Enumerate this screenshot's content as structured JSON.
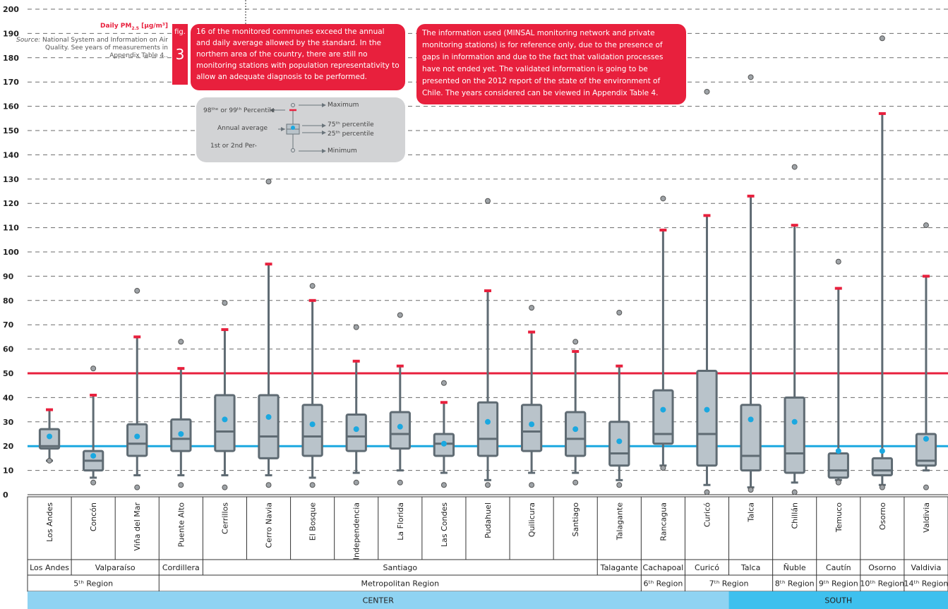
{
  "note_title": "Daily PM",
  "note_title_sub": "2.5",
  "note_title_unit": "[µg/m³]",
  "note_source_label": "Source:",
  "note_source_text": "National System and Information on Air Quality. See years of measurements in Appendix Table 4..",
  "fig_label": "fig.",
  "fig_number": "3",
  "callout_left": "16 of the monitored communes exceed the annual and daily average allowed by the standard. In the northern area of the country, there are still no monitoring stations with population representativity to allow an adequate diagnosis to be performed.",
  "callout_right": "The information used (MINSAL monitoring network and private monitoring stations) is for reference only, due to the presence of gaps in information and due to the fact that validation processes have not ended yet. The validated information is going to be presented on the 2012 report of the state of the environment of Chile. The years considered can be viewed in Appendix Table 4.",
  "legend": {
    "p98": "98ᵗʰᵉ or 99ᵗʰ Percentile",
    "max": "Maximum",
    "avg": "Annual average",
    "p75": "75ᵗʰ percentile",
    "p25": "25ᵗʰ percentile",
    "p1": "1st  or  2nd  Per-",
    "min": "Minimum"
  },
  "colors": {
    "red": "#e8203d",
    "blue": "#1ba8e0",
    "box": "#b9c3ca",
    "box_edge": "#5f6b73",
    "center_band": "#8fd3f2",
    "south_band": "#3ec0ee"
  },
  "chart_data": {
    "type": "box",
    "ylim": [
      0,
      200
    ],
    "yticks": [
      0,
      10,
      20,
      30,
      40,
      50,
      60,
      70,
      80,
      90,
      100,
      110,
      120,
      130,
      140,
      150,
      160,
      170,
      180,
      190,
      200
    ],
    "reference_lines": [
      {
        "value": 50,
        "color": "#e8203d"
      },
      {
        "value": 20,
        "color": "#1ba8e0"
      }
    ],
    "categories": [
      "Los Andes",
      "Concón",
      "Viña del Mar",
      "Puente Alto",
      "Cerrillos",
      "Cerro Navia",
      "El Bosque",
      "Independencia",
      "La Florida",
      "Las Condes",
      "Pudahuel",
      "Quilicura",
      "Santiago",
      "Talagante",
      "Rancagua",
      "Curicó",
      "Talca",
      "Chillán",
      "Temuco",
      "Osorno",
      "Valdivia"
    ],
    "series": [
      {
        "min": 14,
        "q1": 19,
        "median": 20,
        "q3": 27,
        "p98": 35,
        "max": 35,
        "mean": 24,
        "outlier_high": null,
        "outlier_low": 14
      },
      {
        "min": 7,
        "q1": 10,
        "median": 14,
        "q3": 18,
        "p98": 41,
        "max": 41,
        "mean": 16,
        "outlier_high": 52,
        "outlier_low": 5
      },
      {
        "min": 8,
        "q1": 16,
        "median": 21,
        "q3": 29,
        "p98": 65,
        "max": 65,
        "mean": 24,
        "outlier_high": 84,
        "outlier_low": 3
      },
      {
        "min": 8,
        "q1": 18,
        "median": 23,
        "q3": 31,
        "p98": 52,
        "max": 52,
        "mean": 25,
        "outlier_high": 63,
        "outlier_low": 4
      },
      {
        "min": 8,
        "q1": 18,
        "median": 26,
        "q3": 41,
        "p98": 68,
        "max": 68,
        "mean": 31,
        "outlier_high": 79,
        "outlier_low": 3
      },
      {
        "min": 8,
        "q1": 15,
        "median": 24,
        "q3": 41,
        "p98": 95,
        "max": 95,
        "mean": 32,
        "outlier_high": 129,
        "outlier_low": 4
      },
      {
        "min": 7,
        "q1": 16,
        "median": 24,
        "q3": 37,
        "p98": 80,
        "max": 80,
        "mean": 29,
        "outlier_high": 86,
        "outlier_low": 4
      },
      {
        "min": 9,
        "q1": 18,
        "median": 24,
        "q3": 33,
        "p98": 55,
        "max": 55,
        "mean": 27,
        "outlier_high": 69,
        "outlier_low": 5
      },
      {
        "min": 10,
        "q1": 19,
        "median": 25,
        "q3": 34,
        "p98": 53,
        "max": 53,
        "mean": 28,
        "outlier_high": 74,
        "outlier_low": 5
      },
      {
        "min": 9,
        "q1": 16,
        "median": 21,
        "q3": 25,
        "p98": 38,
        "max": 38,
        "mean": 21,
        "outlier_high": 46,
        "outlier_low": 4
      },
      {
        "min": 6,
        "q1": 16,
        "median": 23,
        "q3": 38,
        "p98": 84,
        "max": 84,
        "mean": 30,
        "outlier_high": 121,
        "outlier_low": 4
      },
      {
        "min": 9,
        "q1": 18,
        "median": 26,
        "q3": 37,
        "p98": 67,
        "max": 67,
        "mean": 29,
        "outlier_high": 77,
        "outlier_low": 4
      },
      {
        "min": 9,
        "q1": 16,
        "median": 23,
        "q3": 34,
        "p98": 59,
        "max": 59,
        "mean": 27,
        "outlier_high": 63,
        "outlier_low": 5
      },
      {
        "min": 6,
        "q1": 12,
        "median": 17,
        "q3": 30,
        "p98": 53,
        "max": 53,
        "mean": 22,
        "outlier_high": 75,
        "outlier_low": 4
      },
      {
        "min": 12,
        "q1": 21,
        "median": 25,
        "q3": 43,
        "p98": 109,
        "max": 109,
        "mean": 35,
        "outlier_high": 122,
        "outlier_low": 11
      },
      {
        "min": 4,
        "q1": 12,
        "median": 25,
        "q3": 51,
        "p98": 115,
        "max": 115,
        "mean": 35,
        "outlier_high": 166,
        "outlier_low": 1
      },
      {
        "min": 3,
        "q1": 10,
        "median": 16,
        "q3": 37,
        "p98": 123,
        "max": 123,
        "mean": 31,
        "outlier_high": 172,
        "outlier_low": 2
      },
      {
        "min": 5,
        "q1": 9,
        "median": 17,
        "q3": 40,
        "p98": 111,
        "max": 111,
        "mean": 30,
        "outlier_high": 135,
        "outlier_low": 1
      },
      {
        "min": 6,
        "q1": 7,
        "median": 10,
        "q3": 17,
        "p98": 85,
        "max": 85,
        "mean": 18,
        "outlier_high": 96,
        "outlier_low": 5
      },
      {
        "min": 4,
        "q1": 8,
        "median": 10,
        "q3": 15,
        "p98": 157,
        "max": 157,
        "mean": 18,
        "outlier_high": 188,
        "outlier_low": 3
      },
      {
        "min": 10,
        "q1": 12,
        "median": 14,
        "q3": 25,
        "p98": 90,
        "max": 90,
        "mean": 23,
        "outlier_high": 111,
        "outlier_low": 3
      }
    ],
    "provinces": [
      {
        "label": "Los Andes",
        "span": 1
      },
      {
        "label": "Valparaíso",
        "span": 2
      },
      {
        "label": "Cordillera",
        "span": 1
      },
      {
        "label": "Santiago",
        "span": 9
      },
      {
        "label": "Talagante",
        "span": 1
      },
      {
        "label": "Cachapoal",
        "span": 1
      },
      {
        "label": "Curicó",
        "span": 1
      },
      {
        "label": "Talca",
        "span": 1
      },
      {
        "label": "Ñuble",
        "span": 1
      },
      {
        "label": "Cautín",
        "span": 1
      },
      {
        "label": "Osorno",
        "span": 1
      },
      {
        "label": "Valdivia",
        "span": 1
      }
    ],
    "regions": [
      {
        "label": "5ᵗʰ Region",
        "span": 3
      },
      {
        "label": "Metropolitan Region",
        "span": 11
      },
      {
        "label": "6ᵗʰ Region",
        "span": 1
      },
      {
        "label": "7ᵗʰ Region",
        "span": 2
      },
      {
        "label": "8ᵗʰ Region",
        "span": 1
      },
      {
        "label": "9ᵗʰ Region",
        "span": 1
      },
      {
        "label": "10ᵗʰ Region",
        "span": 1
      },
      {
        "label": "14ᵗʰ Region",
        "span": 1
      }
    ],
    "zones": [
      {
        "label": "CENTER",
        "span": 16
      },
      {
        "label": "SOUTH",
        "span": 5
      }
    ]
  }
}
